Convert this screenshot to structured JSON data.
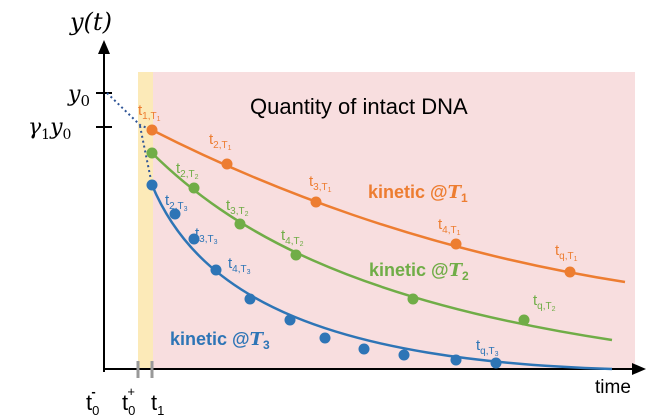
{
  "colors": {
    "orange": "#ED7D31",
    "green": "#70AD47",
    "blue": "#2E75B6",
    "region_pink": "#F8DEDF",
    "region_yellow": "#FCEAB8",
    "axis": "#000000",
    "grey_tick": "#999999"
  },
  "labels": {
    "y_axis": "y(t)",
    "x_axis": "time",
    "region_title": "Quantity of intact DNA",
    "y0_tick": "y",
    "y0_sub": "0",
    "g1y0_gamma": "γ",
    "g1y0_sub1": "1",
    "g1y0_y": "y",
    "g1y0_sub0": "0",
    "t0m_base": "t",
    "t0m_sub": "0",
    "t0m_sup": "-",
    "t0p_base": "t",
    "t0p_sub": "0",
    "t0p_sup": "+",
    "t1_base": "t",
    "t1_sub": "1"
  },
  "curves": [
    {
      "name": "kinetic @T1",
      "label_prefix": "kinetic @",
      "label_T": "T",
      "label_sub": "1",
      "color": "orange",
      "points": [
        {
          "t": "t",
          "sub": "1,T",
          "subsub": "1"
        },
        {
          "t": "t",
          "sub": "2,T",
          "subsub": "1"
        },
        {
          "t": "t",
          "sub": "3,T",
          "subsub": "1"
        },
        {
          "t": "t",
          "sub": "4,T",
          "subsub": "1"
        },
        {
          "t": "t",
          "sub": "q,T",
          "subsub": "1"
        }
      ]
    },
    {
      "name": "kinetic @T2",
      "label_prefix": "kinetic @",
      "label_T": "T",
      "label_sub": "2",
      "color": "green",
      "points": [
        {
          "t": "t",
          "sub": "2,T",
          "subsub": "2"
        },
        {
          "t": "t",
          "sub": "3,T",
          "subsub": "2"
        },
        {
          "t": "t",
          "sub": "4,T",
          "subsub": "2"
        },
        {
          "t": "t",
          "sub": "q,T",
          "subsub": "2"
        }
      ]
    },
    {
      "name": "kinetic @T3",
      "label_prefix": "kinetic @",
      "label_T": "T",
      "label_sub": "3",
      "color": "blue",
      "points": [
        {
          "t": "t",
          "sub": "2,T",
          "subsub": "3"
        },
        {
          "t": "t",
          "sub": "3,T",
          "subsub": "3"
        },
        {
          "t": "t",
          "sub": "4,T",
          "subsub": "3"
        },
        {
          "t": "t",
          "sub": "q,T",
          "subsub": "3"
        }
      ]
    }
  ]
}
